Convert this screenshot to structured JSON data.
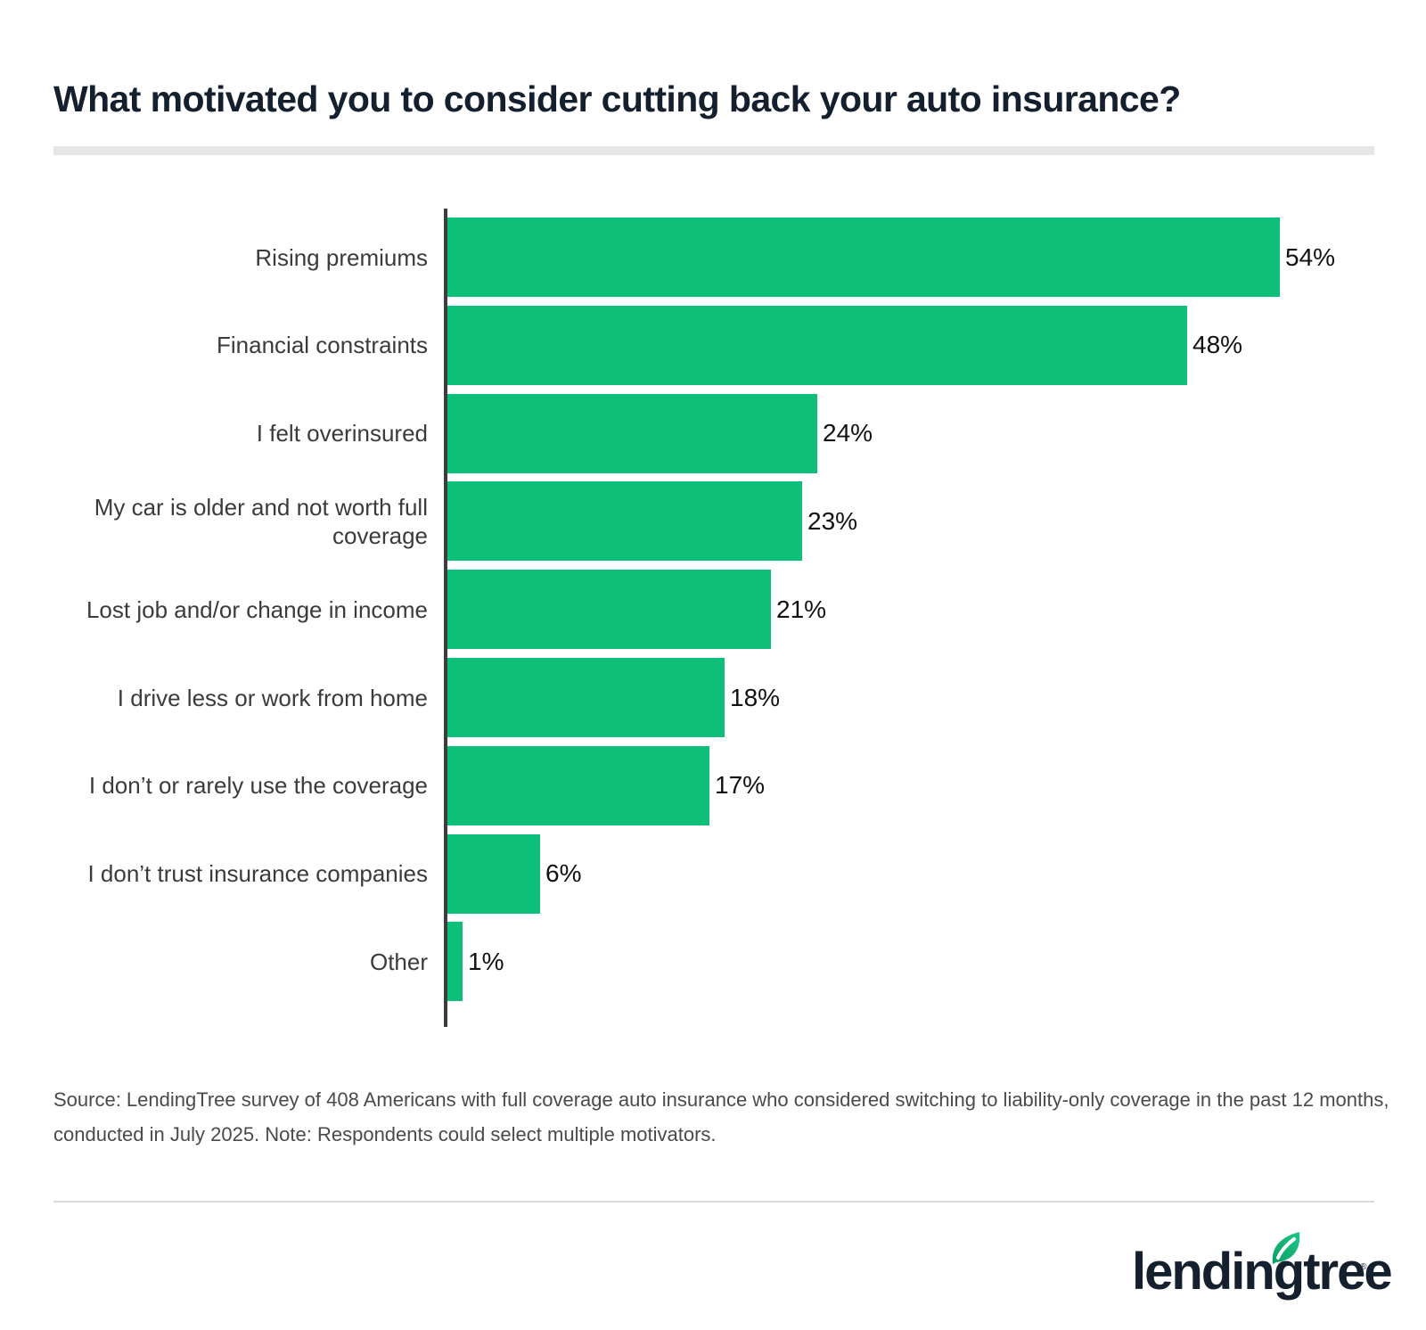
{
  "title": "What motivated you to consider cutting back your auto insurance?",
  "colors": {
    "bar": "#0dbf78",
    "title": "#14202e",
    "axis": "#3d3d3d",
    "divider": "#e6e6e6"
  },
  "source": "Source: LendingTree survey of 408 Americans with full coverage auto insurance who considered switching to liability-only coverage in the past 12 months, conducted in July 2025. Note: Respondents could select multiple motivators.",
  "logo": {
    "text": "lendingtree",
    "registered": "®"
  },
  "chart_data": {
    "type": "bar",
    "orientation": "horizontal",
    "title": "What motivated you to consider cutting back your auto insurance?",
    "xlabel": "",
    "ylabel": "",
    "categories": [
      "Rising premiums",
      "Financial constraints",
      "I felt overinsured",
      "My car is older and not worth full coverage",
      "Lost job and/or change in income",
      "I drive less or work from home",
      "I don’t or rarely use the coverage",
      "I don’t trust insurance companies",
      "Other"
    ],
    "values": [
      54,
      48,
      24,
      23,
      21,
      18,
      17,
      6,
      1
    ],
    "value_labels": [
      "54%",
      "48%",
      "24%",
      "23%",
      "21%",
      "18%",
      "17%",
      "6%",
      "1%"
    ],
    "unit": "%",
    "xlim": [
      0,
      54
    ],
    "grid": false,
    "legend": null
  }
}
